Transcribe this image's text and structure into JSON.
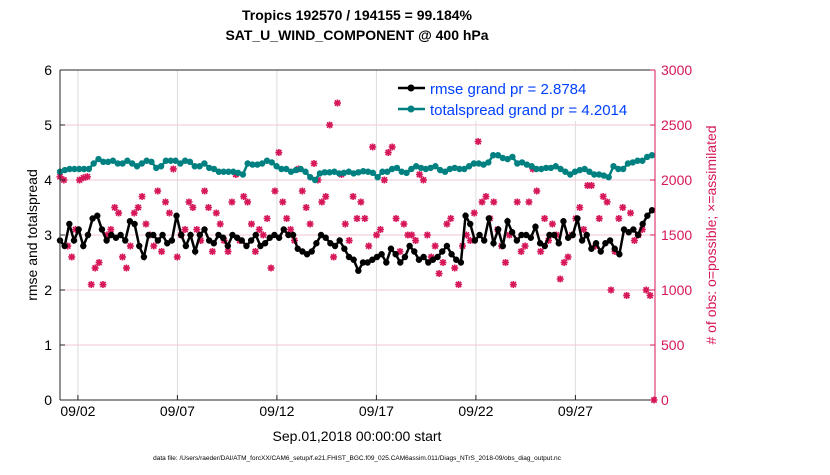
{
  "chart_data": {
    "type": "line",
    "title_line1": "Tropics 192570 / 194155 = 99.184%",
    "title_line2": "SAT_U_WIND_COMPONENT @ 400 hPa",
    "xlabel": "Sep.01,2018 00:00:00 start",
    "ylabel_left": "rmse and totalspread",
    "ylabel_right": "# of obs: o=possible; ×=assimilated",
    "footnote": "data file: /Users/raeder/DAI/ATM_forcXX/CAM6_setup/f.e21.FHIST_BGC.f09_025.CAM6assim.011/Diags_NTrS_2018-09/obs_diag_output.nc",
    "xlim_days": [
      0.1,
      30.0
    ],
    "x_ticks": [
      {
        "day": 1,
        "label": "09/02"
      },
      {
        "day": 6,
        "label": "09/07"
      },
      {
        "day": 11,
        "label": "09/12"
      },
      {
        "day": 16,
        "label": "09/17"
      },
      {
        "day": 21,
        "label": "09/22"
      },
      {
        "day": 26,
        "label": "09/27"
      }
    ],
    "ylim_left": [
      0,
      6
    ],
    "yticks_left": [
      "0",
      "1",
      "2",
      "3",
      "4",
      "5",
      "6"
    ],
    "ylim_right": [
      0,
      3000
    ],
    "yticks_right": [
      "0",
      "500",
      "1000",
      "1500",
      "2000",
      "2500",
      "3000"
    ],
    "grid": true,
    "legend_placement": "top-right",
    "colors": {
      "rmse": "#000000",
      "totalspread": "#008080",
      "obs": "#d6175a",
      "legend_text": "#0040ff"
    },
    "series": [
      {
        "name": "rmse grand pr = 2.8784",
        "x_range_days": [
          0.1,
          29.85
        ],
        "values": [
          2.9,
          2.8,
          3.2,
          2.9,
          3.1,
          2.8,
          3.0,
          3.3,
          3.35,
          3.1,
          2.9,
          3.0,
          2.95,
          3.0,
          2.9,
          3.25,
          3.2,
          2.8,
          2.6,
          3.0,
          3.0,
          2.9,
          3.0,
          2.85,
          2.9,
          3.35,
          3.0,
          2.8,
          3.0,
          2.7,
          3.0,
          3.1,
          2.9,
          2.85,
          3.0,
          2.95,
          2.8,
          3.0,
          2.95,
          2.9,
          2.8,
          2.9,
          3.0,
          2.8,
          2.85,
          2.95,
          3.0,
          2.95,
          3.1,
          3.0,
          3.0,
          2.75,
          2.7,
          2.65,
          2.7,
          2.85,
          3.0,
          2.95,
          2.85,
          2.8,
          2.9,
          2.75,
          2.6,
          2.55,
          2.35,
          2.5,
          2.5,
          2.55,
          2.6,
          2.65,
          2.5,
          2.75,
          2.65,
          2.5,
          2.6,
          2.8,
          2.7,
          2.55,
          2.6,
          2.5,
          2.55,
          2.6,
          2.7,
          2.8,
          2.65,
          2.55,
          2.5,
          3.35,
          3.2,
          2.9,
          3.0,
          2.9,
          3.3,
          2.85,
          3.1,
          2.8,
          3.25,
          3.05,
          2.9,
          3.0,
          3.0,
          2.95,
          3.15,
          2.85,
          2.8,
          3.0,
          3.0,
          2.85,
          3.25,
          2.95,
          3.0,
          3.3,
          2.9,
          3.0,
          2.75,
          2.85,
          2.7,
          2.85,
          2.9,
          2.75,
          2.65,
          3.1,
          3.05,
          3.1,
          3.0,
          3.2,
          3.35,
          3.45
        ]
      },
      {
        "name": "totalspread grand pr = 4.2014",
        "x_range_days": [
          0.1,
          29.85
        ],
        "values": [
          4.15,
          4.18,
          4.2,
          4.2,
          4.2,
          4.2,
          4.2,
          4.3,
          4.38,
          4.33,
          4.33,
          4.35,
          4.3,
          4.3,
          4.35,
          4.3,
          4.25,
          4.3,
          4.35,
          4.33,
          4.22,
          4.25,
          4.35,
          4.35,
          4.35,
          4.3,
          4.35,
          4.33,
          4.25,
          4.25,
          4.3,
          4.22,
          4.2,
          4.15,
          4.15,
          4.15,
          4.15,
          4.13,
          4.1,
          4.3,
          4.28,
          4.28,
          4.3,
          4.35,
          4.32,
          4.25,
          4.2,
          4.2,
          4.15,
          4.18,
          4.2,
          4.15,
          4.05,
          4.0,
          4.12,
          4.14,
          4.14,
          4.15,
          4.12,
          4.13,
          4.15,
          4.12,
          4.14,
          4.16,
          4.15,
          4.13,
          4.05,
          4.15,
          4.15,
          4.2,
          4.22,
          4.15,
          4.13,
          4.2,
          4.25,
          4.22,
          4.2,
          4.22,
          4.25,
          4.18,
          4.15,
          4.2,
          4.22,
          4.2,
          4.2,
          4.25,
          4.3,
          4.3,
          4.28,
          4.32,
          4.45,
          4.45,
          4.4,
          4.38,
          4.42,
          4.3,
          4.32,
          4.28,
          4.25,
          4.2,
          4.2,
          4.22,
          4.22,
          4.25,
          4.2,
          4.15,
          4.1,
          4.15,
          4.18,
          4.2,
          4.15,
          4.1,
          4.1,
          4.08,
          4.05,
          4.25,
          4.2,
          4.2,
          4.3,
          4.32,
          4.35,
          4.35,
          4.42,
          4.45
        ]
      },
      {
        "name": "obs",
        "marker": "asterisk",
        "x_range_days": [
          0.1,
          29.95
        ],
        "values": [
          2030,
          2000,
          1400,
          1300,
          1550,
          2000,
          2020,
          2030,
          1050,
          1200,
          1250,
          1050,
          1500,
          1550,
          1750,
          1700,
          1300,
          1200,
          1400,
          1700,
          1750,
          1850,
          1600,
          1500,
          1400,
          1900,
          1350,
          1800,
          1700,
          2100,
          1300,
          1500,
          1550,
          1800,
          1750,
          1550,
          1450,
          1900,
          1750,
          1350,
          1700,
          1600,
          1450,
          1350,
          1800,
          2050,
          1450,
          1850,
          1800,
          1600,
          1350,
          1550,
          1500,
          1650,
          1200,
          1900,
          2250,
          1800,
          1650,
          1550,
          1450,
          2100,
          1900,
          1750,
          1600,
          2150,
          2000,
          1800,
          1850,
          2500,
          1300,
          2700,
          2050,
          1600,
          1450,
          1850,
          1650,
          1800,
          1650,
          1400,
          2300,
          1500,
          1550,
          2000,
          2250,
          2300,
          1650,
          1350,
          1600,
          1500,
          1500,
          1450,
          2050,
          2000,
          1500,
          1300,
          1400,
          1150,
          1250,
          1600,
          1650,
          1200,
          1050,
          1400,
          1500,
          1450,
          1700,
          2350,
          1800,
          1850,
          1650,
          1800,
          1550,
          1400,
          1250,
          1500,
          1050,
          1800,
          1350,
          1400,
          1800,
          2100,
          1900,
          1350,
          1650,
          1450,
          1600,
          1500,
          1100,
          1250,
          1300,
          1500,
          1650,
          1750,
          1550,
          1950,
          1950,
          1400,
          1650,
          1850,
          1800,
          1000,
          1350,
          1650,
          1750,
          950,
          1700,
          1450,
          1500,
          1550,
          1000,
          950,
          0
        ]
      }
    ]
  }
}
